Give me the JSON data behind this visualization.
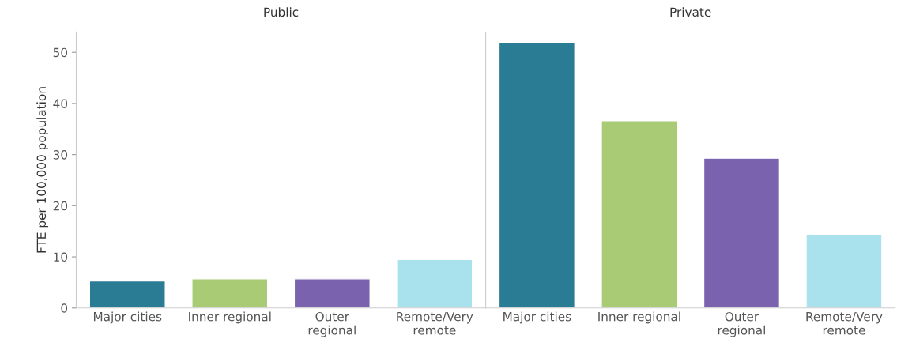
{
  "chart_data": [
    {
      "type": "bar",
      "title": "Public",
      "ylabel": "FTE per 100,000 population",
      "categories": [
        "Major cities",
        "Inner regional",
        "Outer\nregional",
        "Remote/Very\nremote"
      ],
      "values": [
        5.3,
        5.7,
        5.7,
        9.5
      ],
      "colors": [
        "#2a7b94",
        "#a9cb76",
        "#7b62ae",
        "#a9e1ec"
      ],
      "ylim": [
        0,
        54
      ],
      "yticks": [
        0,
        10,
        20,
        30,
        40,
        50
      ],
      "grid": false
    },
    {
      "type": "bar",
      "title": "Private",
      "categories": [
        "Major cities",
        "Inner regional",
        "Outer\nregional",
        "Remote/Very\nremote"
      ],
      "values": [
        52.0,
        36.6,
        29.3,
        14.3
      ],
      "colors": [
        "#2a7b94",
        "#a9cb76",
        "#7b62ae",
        "#a9e1ec"
      ],
      "ylim": [
        0,
        54
      ],
      "yticks": [
        0,
        10,
        20,
        30,
        40,
        50
      ],
      "grid": false,
      "tick_labels": "x"
    }
  ]
}
